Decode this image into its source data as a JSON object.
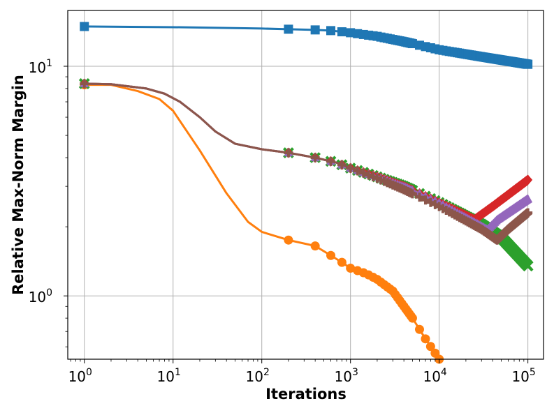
{
  "chart_data": {
    "type": "line",
    "xscale": "log",
    "yscale": "log",
    "xlabel": "Iterations",
    "ylabel": "Relative Max-Norm Margin",
    "xlim": [
      0.65,
      150000
    ],
    "ylim": [
      0.53,
      17.5
    ],
    "grid": true,
    "x_ticks": [
      {
        "value": 1,
        "base": "10",
        "exp": "0"
      },
      {
        "value": 10,
        "base": "10",
        "exp": "1"
      },
      {
        "value": 100,
        "base": "10",
        "exp": "2"
      },
      {
        "value": 1000,
        "base": "10",
        "exp": "3"
      },
      {
        "value": 10000,
        "base": "10",
        "exp": "4"
      },
      {
        "value": 100000,
        "base": "10",
        "exp": "5"
      }
    ],
    "y_ticks": [
      {
        "value": 1,
        "base": "10",
        "exp": "0"
      },
      {
        "value": 10,
        "base": "10",
        "exp": "1"
      }
    ],
    "series": [
      {
        "name": "blue",
        "color": "#1f77b4",
        "marker": "square",
        "x": [
          1,
          10,
          100,
          200,
          400,
          600,
          1000,
          2000,
          4000,
          10000,
          30000,
          100000
        ],
        "y": [
          14.9,
          14.8,
          14.6,
          14.5,
          14.4,
          14.3,
          14.0,
          13.5,
          12.8,
          11.8,
          11.0,
          10.2
        ]
      },
      {
        "name": "orange",
        "color": "#ff7f0e",
        "marker": "circle",
        "x": [
          1,
          2,
          4,
          7,
          10,
          20,
          40,
          70,
          100,
          200,
          400,
          600,
          800,
          1000,
          1500,
          2000,
          3000,
          5000,
          7000,
          10000
        ],
        "y": [
          8.3,
          8.3,
          7.8,
          7.2,
          6.4,
          4.3,
          2.8,
          2.1,
          1.9,
          1.75,
          1.65,
          1.5,
          1.4,
          1.32,
          1.25,
          1.18,
          1.05,
          0.8,
          0.65,
          0.53
        ]
      },
      {
        "name": "green",
        "color": "#2ca02c",
        "marker": "x",
        "x": [
          1,
          2,
          5,
          8,
          12,
          20,
          30,
          50,
          100,
          200,
          400,
          700,
          1000,
          2000,
          4000,
          10000,
          30000,
          50000,
          100000
        ],
        "y": [
          8.4,
          8.35,
          8.0,
          7.6,
          7.0,
          6.0,
          5.2,
          4.6,
          4.35,
          4.2,
          4.0,
          3.8,
          3.6,
          3.3,
          3.0,
          2.55,
          2.05,
          1.8,
          1.35
        ]
      },
      {
        "name": "red",
        "color": "#d62728",
        "marker": "diamond",
        "x": [
          1,
          2,
          5,
          8,
          12,
          20,
          30,
          50,
          100,
          200,
          400,
          700,
          1000,
          2000,
          4000,
          10000,
          25000,
          40000,
          100000
        ],
        "y": [
          8.4,
          8.35,
          8.0,
          7.6,
          7.0,
          6.0,
          5.2,
          4.6,
          4.35,
          4.2,
          4.0,
          3.8,
          3.6,
          3.3,
          3.0,
          2.55,
          2.15,
          2.45,
          3.2
        ]
      },
      {
        "name": "purple",
        "color": "#9467bd",
        "marker": "triangle",
        "x": [
          1,
          2,
          5,
          8,
          12,
          20,
          30,
          50,
          100,
          200,
          400,
          700,
          1000,
          2000,
          4000,
          10000,
          35000,
          45000,
          100000
        ],
        "y": [
          8.4,
          8.35,
          8.0,
          7.6,
          7.0,
          6.0,
          5.2,
          4.6,
          4.35,
          4.2,
          4.0,
          3.8,
          3.6,
          3.3,
          3.0,
          2.55,
          1.95,
          2.15,
          2.65
        ]
      },
      {
        "name": "brown",
        "color": "#8c564b",
        "marker": "plus",
        "x": [
          1,
          2,
          5,
          8,
          12,
          20,
          30,
          50,
          100,
          200,
          400,
          700,
          1000,
          2000,
          4000,
          10000,
          30000,
          45000,
          60000,
          100000
        ],
        "y": [
          8.4,
          8.35,
          8.0,
          7.6,
          7.0,
          6.0,
          5.2,
          4.6,
          4.35,
          4.2,
          4.0,
          3.8,
          3.6,
          3.25,
          2.9,
          2.45,
          1.95,
          1.75,
          1.95,
          2.3
        ]
      }
    ]
  }
}
